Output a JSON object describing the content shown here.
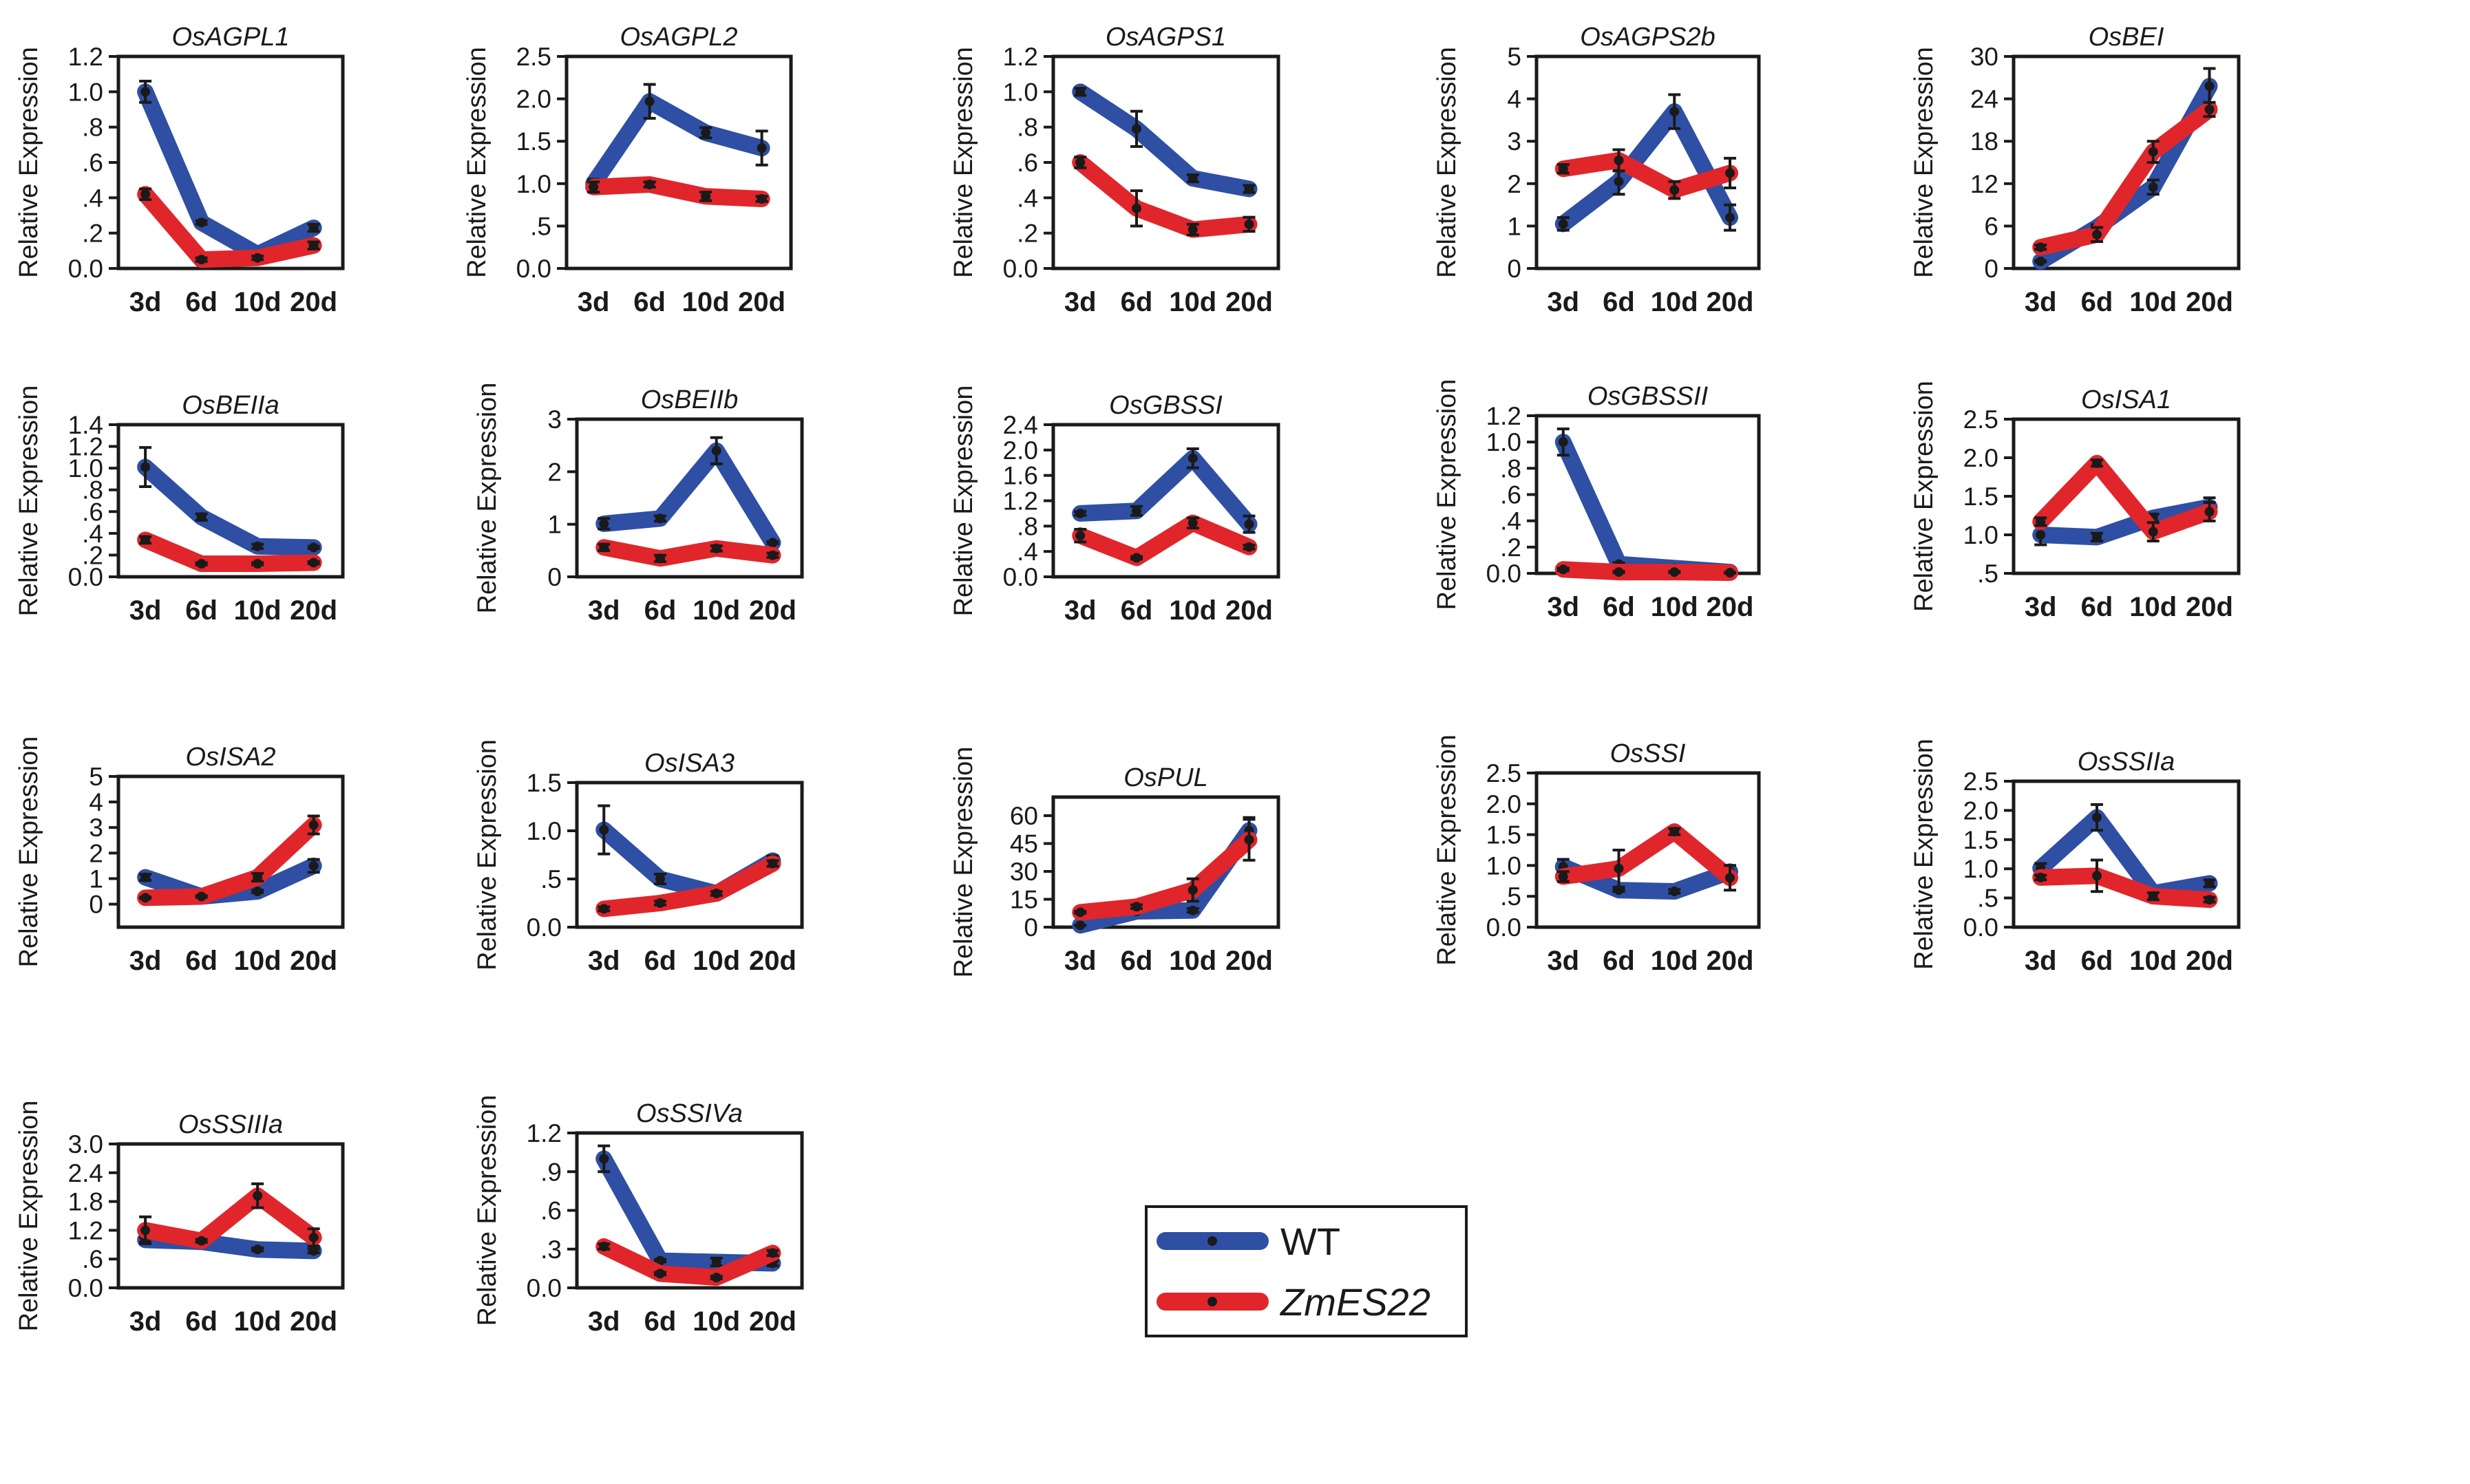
{
  "chart_data": [
    {
      "type": "line",
      "title": "OsAGPL1",
      "xlabel": "",
      "ylabel": "Relative Expression",
      "categories": [
        "3d",
        "6d",
        "10d",
        "20d"
      ],
      "yticks": [
        "0.0",
        ".2",
        ".4",
        ".6",
        ".8",
        "1.0",
        "1.2"
      ],
      "ylim": [
        0,
        1.2
      ],
      "series": [
        {
          "name": "WT",
          "values": [
            1.0,
            0.26,
            0.08,
            0.23
          ],
          "errors": [
            0.06,
            0.01,
            0.01,
            0.02
          ]
        },
        {
          "name": "ZmES22",
          "values": [
            0.42,
            0.05,
            0.06,
            0.13
          ],
          "errors": [
            0.03,
            0.01,
            0.01,
            0.02
          ]
        }
      ]
    },
    {
      "type": "line",
      "title": "OsAGPL2",
      "xlabel": "",
      "ylabel": "Relative Expression",
      "categories": [
        "3d",
        "6d",
        "10d",
        "20d"
      ],
      "yticks": [
        "0.0",
        ".5",
        "1.0",
        "1.5",
        "2.0",
        "2.5"
      ],
      "ylim": [
        0,
        2.5
      ],
      "series": [
        {
          "name": "WT",
          "values": [
            1.0,
            1.97,
            1.6,
            1.42
          ],
          "errors": [
            0.05,
            0.2,
            0.06,
            0.2
          ]
        },
        {
          "name": "ZmES22",
          "values": [
            0.96,
            0.99,
            0.85,
            0.82
          ],
          "errors": [
            0.06,
            0.03,
            0.05,
            0.03
          ]
        }
      ]
    },
    {
      "type": "line",
      "title": "OsAGPS1",
      "xlabel": "",
      "ylabel": "Relative Expression",
      "categories": [
        "3d",
        "6d",
        "10d",
        "20d"
      ],
      "yticks": [
        "0.0",
        ".2",
        ".4",
        ".6",
        ".8",
        "1.0",
        "1.2"
      ],
      "ylim": [
        0,
        1.2
      ],
      "series": [
        {
          "name": "WT",
          "values": [
            1.0,
            0.79,
            0.51,
            0.45
          ],
          "errors": [
            0.02,
            0.1,
            0.02,
            0.02
          ]
        },
        {
          "name": "ZmES22",
          "values": [
            0.6,
            0.34,
            0.22,
            0.25
          ],
          "errors": [
            0.03,
            0.1,
            0.03,
            0.04
          ]
        }
      ]
    },
    {
      "type": "line",
      "title": "OsAGPS2b",
      "xlabel": "",
      "ylabel": "Relative Expression",
      "categories": [
        "3d",
        "6d",
        "10d",
        "20d"
      ],
      "yticks": [
        "0",
        "1",
        "2",
        "3",
        "4",
        "5"
      ],
      "ylim": [
        0,
        5
      ],
      "series": [
        {
          "name": "WT",
          "values": [
            1.05,
            2.05,
            3.7,
            1.2
          ],
          "errors": [
            0.15,
            0.3,
            0.4,
            0.3
          ]
        },
        {
          "name": "ZmES22",
          "values": [
            2.35,
            2.55,
            1.85,
            2.25
          ],
          "errors": [
            0.1,
            0.25,
            0.2,
            0.35
          ]
        }
      ]
    },
    {
      "type": "line",
      "title": "OsBEI",
      "xlabel": "",
      "ylabel": "Relative Expression",
      "categories": [
        "3d",
        "6d",
        "10d",
        "20d"
      ],
      "yticks": [
        "0",
        "6",
        "12",
        "18",
        "24",
        "30"
      ],
      "ylim": [
        0,
        30
      ],
      "series": [
        {
          "name": "WT",
          "values": [
            1.0,
            5.8,
            11.5,
            25.8
          ],
          "errors": [
            0.1,
            0.4,
            1.0,
            2.5
          ]
        },
        {
          "name": "ZmES22",
          "values": [
            3.0,
            4.8,
            16.5,
            22.5
          ],
          "errors": [
            0.3,
            1.0,
            1.5,
            1.0
          ]
        }
      ]
    },
    {
      "type": "line",
      "title": "OsBEIIa",
      "xlabel": "",
      "ylabel": "Relative Expression",
      "categories": [
        "3d",
        "6d",
        "10d",
        "20d"
      ],
      "yticks": [
        "0.0",
        ".2",
        ".4",
        ".6",
        ".8",
        "1.0",
        "1.2",
        "1.4"
      ],
      "ylim": [
        0,
        1.4
      ],
      "series": [
        {
          "name": "WT",
          "values": [
            1.01,
            0.55,
            0.28,
            0.27
          ],
          "errors": [
            0.18,
            0.03,
            0.02,
            0.01
          ]
        },
        {
          "name": "ZmES22",
          "values": [
            0.34,
            0.12,
            0.12,
            0.13
          ],
          "errors": [
            0.03,
            0.01,
            0.01,
            0.01
          ]
        }
      ]
    },
    {
      "type": "line",
      "title": "OsBEIIb",
      "xlabel": "",
      "ylabel": "Relative Expression",
      "categories": [
        "3d",
        "6d",
        "10d",
        "20d"
      ],
      "yticks": [
        "0",
        "1",
        "2",
        "3"
      ],
      "ylim": [
        0,
        3
      ],
      "series": [
        {
          "name": "WT",
          "values": [
            1.01,
            1.11,
            2.4,
            0.65
          ],
          "errors": [
            0.1,
            0.05,
            0.25,
            0.02
          ]
        },
        {
          "name": "ZmES22",
          "values": [
            0.56,
            0.35,
            0.54,
            0.41
          ],
          "errors": [
            0.06,
            0.06,
            0.05,
            0.04
          ]
        }
      ]
    },
    {
      "type": "line",
      "title": "OsGBSSI",
      "xlabel": "",
      "ylabel": "Relative Expression",
      "categories": [
        "3d",
        "6d",
        "10d",
        "20d"
      ],
      "yticks": [
        "0.0",
        ".4",
        ".8",
        "1.2",
        "1.6",
        "2.0",
        "2.4"
      ],
      "ylim": [
        0,
        2.4
      ],
      "series": [
        {
          "name": "WT",
          "values": [
            1.0,
            1.04,
            1.87,
            0.83
          ],
          "errors": [
            0.03,
            0.07,
            0.15,
            0.13
          ]
        },
        {
          "name": "ZmES22",
          "values": [
            0.65,
            0.3,
            0.85,
            0.47
          ],
          "errors": [
            0.1,
            0.02,
            0.08,
            0.03
          ]
        }
      ]
    },
    {
      "type": "line",
      "title": "OsGBSSII",
      "xlabel": "",
      "ylabel": "Relative Expression",
      "categories": [
        "3d",
        "6d",
        "10d",
        "20d"
      ],
      "yticks": [
        "0.0",
        ".2",
        ".4",
        ".6",
        ".8",
        "1.0",
        "1.2"
      ],
      "ylim": [
        0,
        1.2
      ],
      "series": [
        {
          "name": "WT",
          "values": [
            1.0,
            0.07,
            0.04,
            0.01
          ],
          "errors": [
            0.1,
            0.01,
            0.01,
            0.005
          ]
        },
        {
          "name": "ZmES22",
          "values": [
            0.03,
            0.01,
            0.01,
            0.005
          ],
          "errors": [
            0.01,
            0.005,
            0.005,
            0.003
          ]
        }
      ]
    },
    {
      "type": "line",
      "title": "OsISA1",
      "xlabel": "",
      "ylabel": "Relative Expression",
      "categories": [
        "3d",
        "6d",
        "10d",
        "20d"
      ],
      "yticks": [
        ".5",
        "1.0",
        "1.5",
        "2.0",
        "2.5"
      ],
      "ylim": [
        0.5,
        2.5
      ],
      "series": [
        {
          "name": "WT",
          "values": [
            1.0,
            0.97,
            1.22,
            1.36
          ],
          "errors": [
            0.13,
            0.05,
            0.05,
            0.12
          ]
        },
        {
          "name": "ZmES22",
          "values": [
            1.17,
            1.93,
            1.04,
            1.3
          ],
          "errors": [
            0.05,
            0.04,
            0.12,
            0.12
          ]
        }
      ]
    },
    {
      "type": "line",
      "title": "OsISA2",
      "xlabel": "",
      "ylabel": "Relative Expression",
      "categories": [
        "3d",
        "6d",
        "10d",
        "20d"
      ],
      "yticks": [
        "0",
        "1",
        "2",
        "3",
        "4",
        "5"
      ],
      "ylim": [
        -0.9,
        5
      ],
      "series": [
        {
          "name": "WT",
          "values": [
            1.05,
            0.3,
            0.5,
            1.5
          ],
          "errors": [
            0.12,
            0.03,
            0.05,
            0.25
          ]
        },
        {
          "name": "ZmES22",
          "values": [
            0.25,
            0.3,
            1.05,
            3.1
          ],
          "errors": [
            0.03,
            0.03,
            0.15,
            0.35
          ]
        }
      ]
    },
    {
      "type": "line",
      "title": "OsISA3",
      "xlabel": "",
      "ylabel": "Relative Expression",
      "categories": [
        "3d",
        "6d",
        "10d",
        "20d"
      ],
      "yticks": [
        "0.0",
        ".5",
        "1.0",
        "1.5"
      ],
      "ylim": [
        0,
        1.5
      ],
      "series": [
        {
          "name": "WT",
          "values": [
            1.01,
            0.5,
            0.35,
            0.69
          ],
          "errors": [
            0.25,
            0.05,
            0.02,
            0.05
          ]
        },
        {
          "name": "ZmES22",
          "values": [
            0.19,
            0.25,
            0.35,
            0.66
          ],
          "errors": [
            0.02,
            0.02,
            0.02,
            0.03
          ]
        }
      ]
    },
    {
      "type": "line",
      "title": "OsPUL",
      "xlabel": "",
      "ylabel": "Relative Expression",
      "categories": [
        "3d",
        "6d",
        "10d",
        "20d"
      ],
      "yticks": [
        "0",
        "15",
        "30",
        "45",
        "60"
      ],
      "ylim": [
        0,
        70
      ],
      "series": [
        {
          "name": "WT",
          "values": [
            1.0,
            8.5,
            9.0,
            52.0
          ],
          "errors": [
            0.1,
            0.5,
            1.0,
            7.0
          ]
        },
        {
          "name": "ZmES22",
          "values": [
            8.0,
            11.0,
            20.0,
            47.0
          ],
          "errors": [
            0.5,
            1.0,
            6.0,
            11.0
          ]
        }
      ]
    },
    {
      "type": "line",
      "title": "OsSSI",
      "xlabel": "",
      "ylabel": "Relative Expression",
      "categories": [
        "3d",
        "6d",
        "10d",
        "20d"
      ],
      "yticks": [
        "0.0",
        ".5",
        "1.0",
        "1.5",
        "2.0",
        "2.5"
      ],
      "ylim": [
        0,
        2.5
      ],
      "series": [
        {
          "name": "WT",
          "values": [
            0.98,
            0.6,
            0.58,
            0.9
          ],
          "errors": [
            0.12,
            0.02,
            0.03,
            0.1
          ]
        },
        {
          "name": "ZmES22",
          "values": [
            0.82,
            0.95,
            1.55,
            0.8
          ],
          "errors": [
            0.08,
            0.3,
            0.05,
            0.2
          ]
        }
      ]
    },
    {
      "type": "line",
      "title": "OsSSIIa",
      "xlabel": "",
      "ylabel": "Relative Expression",
      "categories": [
        "3d",
        "6d",
        "10d",
        "20d"
      ],
      "yticks": [
        "0.0",
        ".5",
        "1.0",
        "1.5",
        "2.0",
        "2.5"
      ],
      "ylim": [
        0,
        2.5
      ],
      "series": [
        {
          "name": "WT",
          "values": [
            1.01,
            1.88,
            0.58,
            0.75
          ],
          "errors": [
            0.08,
            0.22,
            0.04,
            0.06
          ]
        },
        {
          "name": "ZmES22",
          "values": [
            0.85,
            0.88,
            0.53,
            0.47
          ],
          "errors": [
            0.04,
            0.27,
            0.06,
            0.04
          ]
        }
      ]
    },
    {
      "type": "line",
      "title": "OsSSIIIa",
      "xlabel": "",
      "ylabel": "Relative Expression",
      "categories": [
        "3d",
        "6d",
        "10d",
        "20d"
      ],
      "yticks": [
        "0.0",
        ".6",
        "1.2",
        "1.8",
        "2.4",
        "3.0"
      ],
      "ylim": [
        0,
        3
      ],
      "series": [
        {
          "name": "WT",
          "values": [
            1.0,
            0.96,
            0.8,
            0.77
          ],
          "errors": [
            0.05,
            0.03,
            0.03,
            0.04
          ]
        },
        {
          "name": "ZmES22",
          "values": [
            1.2,
            0.98,
            1.92,
            1.05
          ],
          "errors": [
            0.28,
            0.03,
            0.25,
            0.18
          ]
        }
      ]
    },
    {
      "type": "line",
      "title": "OsSSIVa",
      "xlabel": "",
      "ylabel": "Relative Expression",
      "categories": [
        "3d",
        "6d",
        "10d",
        "20d"
      ],
      "yticks": [
        "0.0",
        ".3",
        ".6",
        ".9",
        "1.2"
      ],
      "ylim": [
        0,
        1.2
      ],
      "series": [
        {
          "name": "WT",
          "values": [
            1.0,
            0.21,
            0.2,
            0.19
          ],
          "errors": [
            0.1,
            0.01,
            0.03,
            0.02
          ]
        },
        {
          "name": "ZmES22",
          "values": [
            0.32,
            0.11,
            0.08,
            0.27
          ],
          "errors": [
            0.02,
            0.01,
            0.01,
            0.02
          ]
        }
      ]
    }
  ],
  "legend": {
    "entries": [
      {
        "label": "WT",
        "italic": false,
        "color": "#2e4fa3"
      },
      {
        "label": "ZmES22",
        "italic": true,
        "color": "#e0262b"
      }
    ]
  },
  "colors": {
    "WT": "#2e4fa3",
    "ZmES22": "#e0262b",
    "frame": "#1a1a1a",
    "marker": "#1a1a1a"
  }
}
